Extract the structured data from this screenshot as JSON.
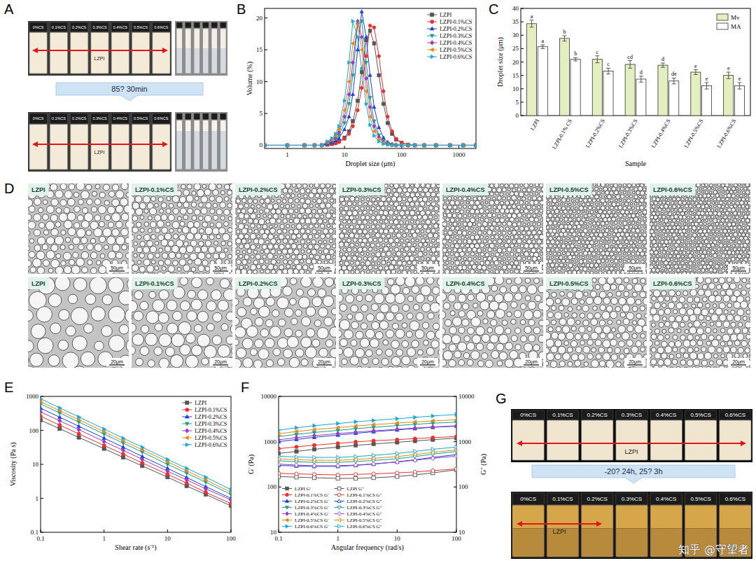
{
  "panel_a": {
    "letter": "A",
    "vial_labels": [
      "0%CS",
      "0.1%CS",
      "0.2%CS",
      "0.3%CS",
      "0.4%CS",
      "0.5%CS",
      "0.6%CS"
    ],
    "sample_label": "LZPI",
    "treatment": "85? 30min"
  },
  "panel_d": {
    "letter": "D",
    "labels": [
      "LZPI",
      "LZPI-0.1%CS",
      "LZPI-0.2%CS",
      "LZPI-0.3%CS",
      "LZPI-0.4%CS",
      "LZPI-0.5%CS",
      "LZPI-0.6%CS"
    ],
    "scale_bars": [
      "50μm",
      "20μm"
    ]
  },
  "panel_g": {
    "letter": "G",
    "vial_labels": [
      "0%CS",
      "0.1%CS",
      "0.2%CS",
      "0.3%CS",
      "0.4%CS",
      "0.5%CS",
      "0.6%CS"
    ],
    "sample_label": "LZPI",
    "treatment": "-20? 24h, 25? 3h",
    "watermark": "知乎 @守望者"
  },
  "chart_data": [
    {
      "panel": "B",
      "type": "line",
      "x_label": "Droplet size (μm)",
      "y_label": "Volume (%)",
      "log": "x",
      "grid": false,
      "legend": "top-right",
      "line_style": "solid",
      "x": [
        0.4,
        1,
        2,
        3,
        4,
        5,
        6,
        7,
        8,
        10,
        12,
        14,
        17,
        20,
        24,
        28,
        33,
        40,
        48,
        57,
        68,
        80,
        100,
        130,
        170,
        250,
        400,
        700,
        1200,
        2000
      ],
      "xlim": [
        0.4,
        2000
      ],
      "xticks": [
        1,
        10,
        100,
        1000
      ],
      "ylim": [
        -0.5,
        21.5
      ],
      "yticks": [
        0,
        5,
        10,
        15,
        20
      ],
      "series": [
        {
          "name": "LZPI",
          "color": "#555555",
          "marker": "square",
          "values": [
            0,
            0,
            0,
            0,
            0,
            0.1,
            0.2,
            0.4,
            0.6,
            1.2,
            2.2,
            3.8,
            7,
            11.5,
            16.5,
            18,
            16,
            11,
            6.5,
            3.5,
            1.8,
            0.9,
            0.4,
            0.1,
            0,
            0,
            0,
            0,
            0,
            0
          ]
        },
        {
          "name": "LZPI-0.1%CS",
          "color": "#e8322e",
          "marker": "circle",
          "values": [
            0,
            0,
            0,
            0,
            0,
            0.1,
            0.2,
            0.3,
            0.5,
            1,
            1.8,
            3,
            5.5,
            9,
            14,
            18.8,
            18.5,
            14,
            8.5,
            4.5,
            2.2,
            1,
            0.4,
            0.1,
            0,
            0,
            0,
            0,
            0,
            0
          ]
        },
        {
          "name": "LZPI-0.2%CS",
          "color": "#1f3fd8",
          "marker": "triangle-up",
          "values": [
            0,
            0,
            0,
            0,
            0,
            0.2,
            0.4,
            0.7,
            1.1,
            2.5,
            4.5,
            8,
            15,
            21,
            17,
            11,
            6,
            2.8,
            1.2,
            0.5,
            0.2,
            0.1,
            0,
            0,
            0,
            0,
            0,
            0,
            0,
            0
          ]
        },
        {
          "name": "LZPI-0.3%CS",
          "color": "#1a9e8a",
          "marker": "triangle-down",
          "values": [
            0,
            0,
            0,
            0,
            0,
            0.3,
            0.6,
            1,
            1.6,
            3.5,
            6.5,
            11,
            19,
            19.5,
            13,
            7.5,
            3.8,
            1.6,
            0.7,
            0.3,
            0.1,
            0,
            0,
            0,
            0,
            0,
            0,
            0,
            0,
            0
          ]
        },
        {
          "name": "LZPI-0.4%CS",
          "color": "#9b3dbf",
          "marker": "diamond",
          "values": [
            0,
            0,
            0,
            0,
            0,
            0.4,
            0.7,
            1.2,
            2,
            4.5,
            8,
            13,
            19.5,
            17,
            10.5,
            6,
            3,
            1.3,
            0.5,
            0.2,
            0.1,
            0,
            0,
            0,
            0,
            0,
            0,
            0,
            0,
            0
          ]
        },
        {
          "name": "LZPI-0.5%CS",
          "color": "#e08a1a",
          "marker": "triangle-left",
          "values": [
            0,
            0,
            0,
            0,
            0,
            0.5,
            0.9,
            1.5,
            2.5,
            5.5,
            10,
            16,
            19,
            15,
            8.5,
            4.5,
            2.2,
            1,
            0.4,
            0.1,
            0,
            0,
            0,
            0,
            0,
            0,
            0,
            0,
            0,
            0
          ]
        },
        {
          "name": "LZPI-0.6%CS",
          "color": "#1aa7d6",
          "marker": "triangle-right",
          "values": [
            0,
            0,
            0,
            0,
            0,
            0.6,
            1.1,
            1.8,
            3,
            7,
            13,
            19.5,
            17,
            12,
            6.5,
            3.2,
            1.5,
            0.6,
            0.2,
            0.1,
            0,
            0,
            0,
            0,
            0,
            0,
            0,
            0,
            0,
            0
          ]
        }
      ]
    },
    {
      "panel": "C",
      "type": "bar",
      "x_label": "Sample",
      "y_label": "Droplet size (μm)",
      "grid": false,
      "legend": "top-right",
      "categories": [
        "LZPI",
        "LZPI-0.1% CS",
        "LZPI-0.2%CS",
        "LZPI-0.3%CS",
        "LZPI-0.4%CS",
        "LZPI-0.5%CS",
        "LZPI-0.6%CS"
      ],
      "ylim": [
        0,
        40
      ],
      "yticks": [
        0,
        5,
        10,
        15,
        20,
        25,
        30,
        35,
        40
      ],
      "series": [
        {
          "name": "Mv",
          "color": "#e3efc0",
          "values": [
            34.3,
            28.8,
            21.0,
            19.1,
            18.8,
            16.2,
            15.0
          ],
          "errors": [
            1.3,
            1.0,
            1.3,
            1.4,
            0.8,
            0.9,
            1.2
          ],
          "annotations": [
            "a",
            "b",
            "c",
            "cd",
            "d",
            "e",
            "e"
          ]
        },
        {
          "name": "MA",
          "color": "#ffffff",
          "values": [
            25.7,
            21.0,
            16.6,
            13.6,
            12.9,
            11.1,
            11.1
          ],
          "errors": [
            0.7,
            0.6,
            1.1,
            1.1,
            1.1,
            1.2,
            1.2
          ],
          "annotations": [
            "a",
            "b",
            "c",
            "d",
            "de",
            "e",
            "e"
          ]
        }
      ]
    },
    {
      "panel": "E",
      "type": "line",
      "x_label": "Shear rate (s⁻¹)",
      "y_label": "Viscosity (Pa s)",
      "log": true,
      "grid": false,
      "legend": "top-right",
      "line_style": "solid",
      "x": [
        0.1,
        0.2,
        0.4,
        1,
        2,
        4,
        10,
        20,
        40,
        100
      ],
      "xlim": [
        0.1,
        100
      ],
      "xticks": [
        0.1,
        1,
        10,
        100
      ],
      "ylim": [
        0.1,
        1000
      ],
      "yticks": [
        0.1,
        1,
        10,
        100,
        1000
      ],
      "series": [
        {
          "name": "LZPI",
          "color": "#555555",
          "marker": "square",
          "values": [
            200,
            112,
            62,
            29,
            16,
            9,
            4.2,
            2.3,
            1.3,
            0.6
          ]
        },
        {
          "name": "LZPI-0.1%CS",
          "color": "#e8322e",
          "marker": "circle",
          "values": [
            260,
            143,
            79,
            36,
            20,
            11,
            5.1,
            2.8,
            1.5,
            0.7
          ]
        },
        {
          "name": "LZPI-0.2%CS",
          "color": "#1f3fd8",
          "marker": "triangle-up",
          "values": [
            450,
            244,
            132,
            59,
            32,
            17,
            7.6,
            4.1,
            2.2,
            1.0
          ]
        },
        {
          "name": "LZPI-0.3%CS",
          "color": "#1a9e8a",
          "marker": "triangle-down",
          "values": [
            600,
            325,
            176,
            78,
            42,
            23,
            10,
            5.5,
            3.0,
            1.3
          ]
        },
        {
          "name": "LZPI-0.4%CS",
          "color": "#9b3dbf",
          "marker": "diamond",
          "values": [
            350,
            192,
            105,
            47,
            26,
            14,
            6.3,
            3.5,
            1.9,
            0.9
          ]
        },
        {
          "name": "LZPI-0.5%CS",
          "color": "#e08a1a",
          "marker": "triangle-left",
          "values": [
            700,
            379,
            206,
            91,
            49,
            27,
            12,
            6.4,
            3.5,
            1.5
          ]
        },
        {
          "name": "LZPI-0.6%CS",
          "color": "#1aa7d6",
          "marker": "triangle-right",
          "values": [
            850,
            460,
            249,
            110,
            59,
            32,
            14,
            7.7,
            4.2,
            1.8
          ]
        }
      ]
    },
    {
      "panel": "F",
      "type": "line",
      "x_label": "Angular frequency (rad/s)",
      "y_label": "G' (Pa)",
      "y2_label": "G'' (Pa)",
      "log": true,
      "grid": false,
      "legend": "bottom-left",
      "line_style": "solid",
      "x": [
        0.1,
        0.2,
        0.4,
        1,
        2,
        4,
        10,
        20,
        40,
        100
      ],
      "xlim": [
        0.1,
        100
      ],
      "xticks": [
        0.1,
        1,
        10,
        100
      ],
      "ylim": [
        10,
        10000
      ],
      "yticks": [
        10,
        100,
        1000,
        10000
      ],
      "y2lim": [
        10,
        10000
      ],
      "y2ticks": [
        10,
        100,
        1000,
        10000
      ],
      "series": [
        {
          "name": "LZPI G'",
          "color": "#555555",
          "marker": "square",
          "values": [
            550,
            610,
            680,
            760,
            830,
            890,
            970,
            1040,
            1110,
            1200
          ]
        },
        {
          "name": "LZPI G''",
          "color": "#555555",
          "marker": "square-open",
          "axis": "y2",
          "values": [
            170,
            165,
            160,
            155,
            155,
            160,
            170,
            185,
            205,
            240
          ]
        },
        {
          "name": "LZPI-0.1%CS G'",
          "color": "#e8322e",
          "marker": "circle",
          "values": [
            700,
            770,
            840,
            920,
            990,
            1050,
            1110,
            1170,
            1230,
            1300
          ]
        },
        {
          "name": "LZPI-0.1%CS G''",
          "color": "#e8322e",
          "marker": "circle-open",
          "axis": "y2",
          "values": [
            200,
            195,
            190,
            185,
            190,
            195,
            205,
            215,
            230,
            250
          ]
        },
        {
          "name": "LZPI-0.2%CS G'",
          "color": "#1f3fd8",
          "marker": "triangle-up",
          "values": [
            1000,
            1120,
            1250,
            1400,
            1530,
            1660,
            1820,
            1950,
            2080,
            2200
          ]
        },
        {
          "name": "LZPI-0.2%CS G''",
          "color": "#1f3fd8",
          "marker": "triangle-up-open",
          "axis": "y2",
          "values": [
            300,
            290,
            285,
            285,
            300,
            320,
            360,
            400,
            450,
            520
          ]
        },
        {
          "name": "LZPI-0.3%CS G'",
          "color": "#1a9e8a",
          "marker": "triangle-down",
          "values": [
            1300,
            1450,
            1600,
            1780,
            1940,
            2080,
            2270,
            2420,
            2560,
            2700
          ]
        },
        {
          "name": "LZPI-0.3%CS G''",
          "color": "#1a9e8a",
          "marker": "triangle-down-open",
          "axis": "y2",
          "values": [
            380,
            360,
            350,
            350,
            365,
            385,
            420,
            470,
            530,
            610
          ]
        },
        {
          "name": "LZPI-0.4%CS G'",
          "color": "#9b3dbf",
          "marker": "diamond",
          "values": [
            1100,
            1230,
            1360,
            1510,
            1630,
            1740,
            1880,
            2000,
            2110,
            2250
          ]
        },
        {
          "name": "LZPI-0.4%CS G''",
          "color": "#9b3dbf",
          "marker": "diamond-open",
          "axis": "y2",
          "values": [
            320,
            305,
            295,
            295,
            305,
            325,
            355,
            390,
            430,
            480
          ]
        },
        {
          "name": "LZPI-0.5%CS G'",
          "color": "#e08a1a",
          "marker": "triangle-left",
          "values": [
            1500,
            1680,
            1850,
            2050,
            2220,
            2380,
            2580,
            2730,
            2880,
            3050
          ]
        },
        {
          "name": "LZPI-0.5%CS G''",
          "color": "#e08a1a",
          "marker": "triangle-left-open",
          "axis": "y2",
          "values": [
            420,
            400,
            390,
            390,
            405,
            430,
            470,
            520,
            580,
            660
          ]
        },
        {
          "name": "LZPI-0.6%CS G'",
          "color": "#1aa7d6",
          "marker": "triangle-right",
          "values": [
            1800,
            2030,
            2260,
            2520,
            2750,
            2950,
            3220,
            3450,
            3700,
            4000
          ]
        },
        {
          "name": "LZPI-0.6%CS G''",
          "color": "#1aa7d6",
          "marker": "triangle-right-open",
          "axis": "y2",
          "values": [
            480,
            460,
            450,
            450,
            470,
            500,
            550,
            610,
            680,
            760
          ]
        }
      ]
    }
  ]
}
